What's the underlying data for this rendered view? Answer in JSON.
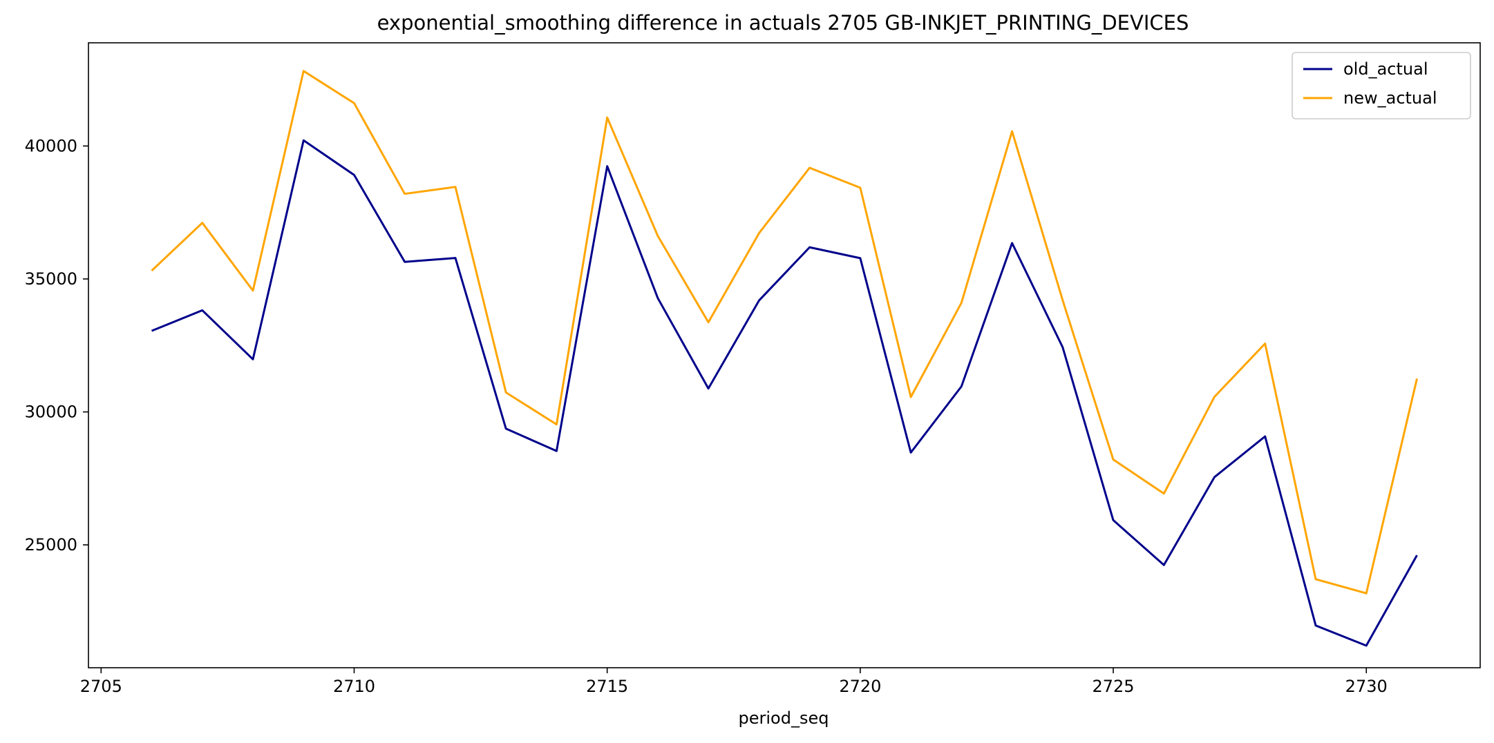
{
  "chart_data": {
    "type": "line",
    "title": "exponential_smoothing difference in actuals 2705 GB-INKJET_PRINTING_DEVICES",
    "xlabel": "period_seq",
    "ylabel": "",
    "x": [
      2706,
      2707,
      2708,
      2709,
      2710,
      2711,
      2712,
      2713,
      2714,
      2715,
      2716,
      2717,
      2718,
      2719,
      2720,
      2721,
      2722,
      2723,
      2724,
      2725,
      2726,
      2727,
      2728,
      2729,
      2730,
      2731
    ],
    "series": [
      {
        "name": "old_actual",
        "color": "#00008b",
        "values": [
          33050,
          33820,
          31980,
          40210,
          38910,
          35640,
          35790,
          29370,
          28530,
          39240,
          34280,
          30880,
          34190,
          36190,
          35780,
          28470,
          30960,
          36350,
          32430,
          25930,
          24240,
          27550,
          29080,
          21970,
          21210,
          24610
        ]
      },
      {
        "name": "new_actual",
        "color": "#ffa500",
        "values": [
          35310,
          37110,
          34560,
          42820,
          41610,
          38200,
          38460,
          30730,
          29530,
          41070,
          36620,
          33370,
          36720,
          39180,
          38430,
          30560,
          34100,
          40550,
          34200,
          28210,
          26930,
          30570,
          32570,
          23710,
          23180,
          31250
        ]
      }
    ],
    "xlim": [
      2704.75,
      2732.25
    ],
    "ylim": [
      20380,
      43880
    ],
    "x_ticks": [
      "2705",
      "2710",
      "2715",
      "2720",
      "2725",
      "2730"
    ],
    "y_ticks": [
      "25000",
      "30000",
      "35000",
      "40000"
    ],
    "legend_position": "top-right",
    "grid": false
  }
}
